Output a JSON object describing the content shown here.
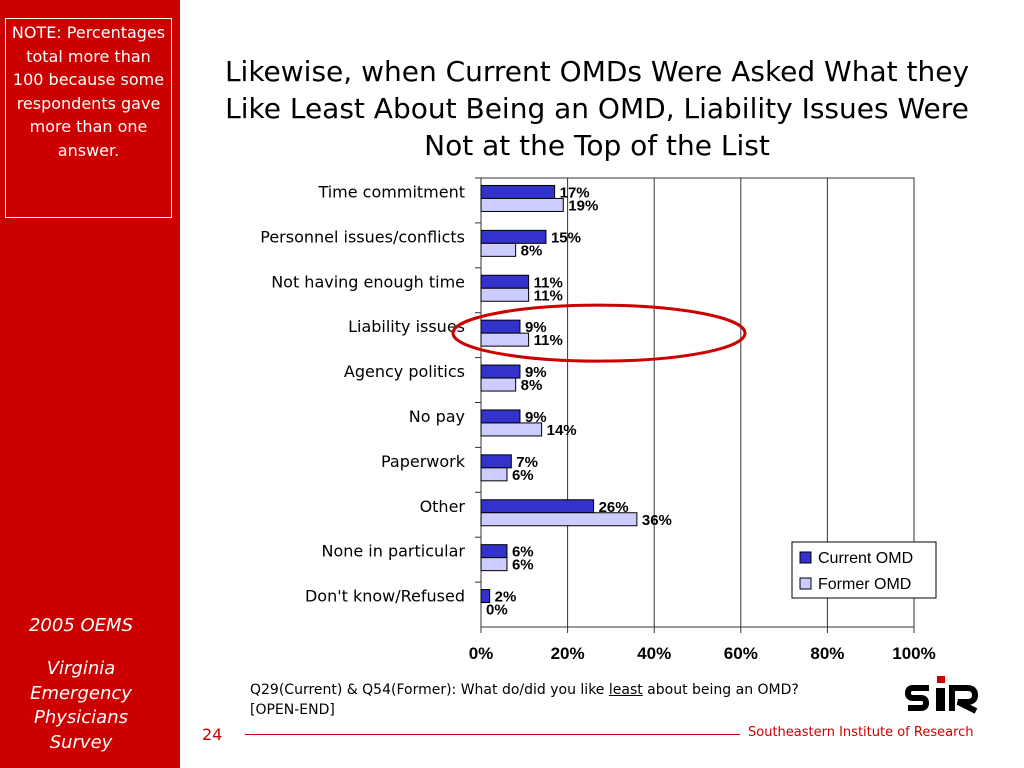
{
  "slide": {
    "note": "NOTE: Percentages total more than 100 because some respondents gave more than one answer.",
    "title": "Likewise, when Current OMDs Were Asked What they Like Least About Being an OMD, Liability Issues Were Not at the Top of the List",
    "footnote_prefix": "Q29(Current) & Q54(Former): What do/did you like ",
    "footnote_emphasis": "least",
    "footnote_suffix": " about being an OMD?",
    "footnote_line2": "[OPEN-END]",
    "sidebar_line1": "2005 OEMS",
    "sidebar_line2": "Virginia Emergency Physicians Survey",
    "page_number": "24",
    "organization": "Southeastern Institute of Research",
    "logo_text": "SIR"
  },
  "colors": {
    "brand_red": "#cc0000",
    "current_bar": "#3333cc",
    "former_bar": "#ccccff",
    "highlight_ellipse": "#cc0000"
  },
  "chart_data": {
    "type": "bar",
    "orientation": "horizontal",
    "categories": [
      "Time commitment",
      "Personnel issues/conflicts",
      "Not having enough time",
      "Liability issues",
      "Agency politics",
      "No pay",
      "Paperwork",
      "Other",
      "None in particular",
      "Don't know/Refused"
    ],
    "series": [
      {
        "name": "Current OMD",
        "values": [
          17,
          15,
          11,
          9,
          9,
          9,
          7,
          26,
          6,
          2
        ]
      },
      {
        "name": "Former OMD",
        "values": [
          19,
          8,
          11,
          11,
          8,
          14,
          6,
          36,
          6,
          0
        ]
      }
    ],
    "value_labels": {
      "Current OMD": [
        "17%",
        "15%",
        "11%",
        "9%",
        "9%",
        "9%",
        "7%",
        "26%",
        "6%",
        "2%"
      ],
      "Former OMD": [
        "19%",
        "8%",
        "11%",
        "11%",
        "8%",
        "14%",
        "6%",
        "36%",
        "6%",
        "0%"
      ]
    },
    "x_ticks": [
      "0%",
      "20%",
      "40%",
      "60%",
      "80%",
      "100%"
    ],
    "xlim": [
      0,
      100
    ],
    "grid": "vertical",
    "legend_position": "bottom-right",
    "highlighted_category": "Liability issues"
  }
}
